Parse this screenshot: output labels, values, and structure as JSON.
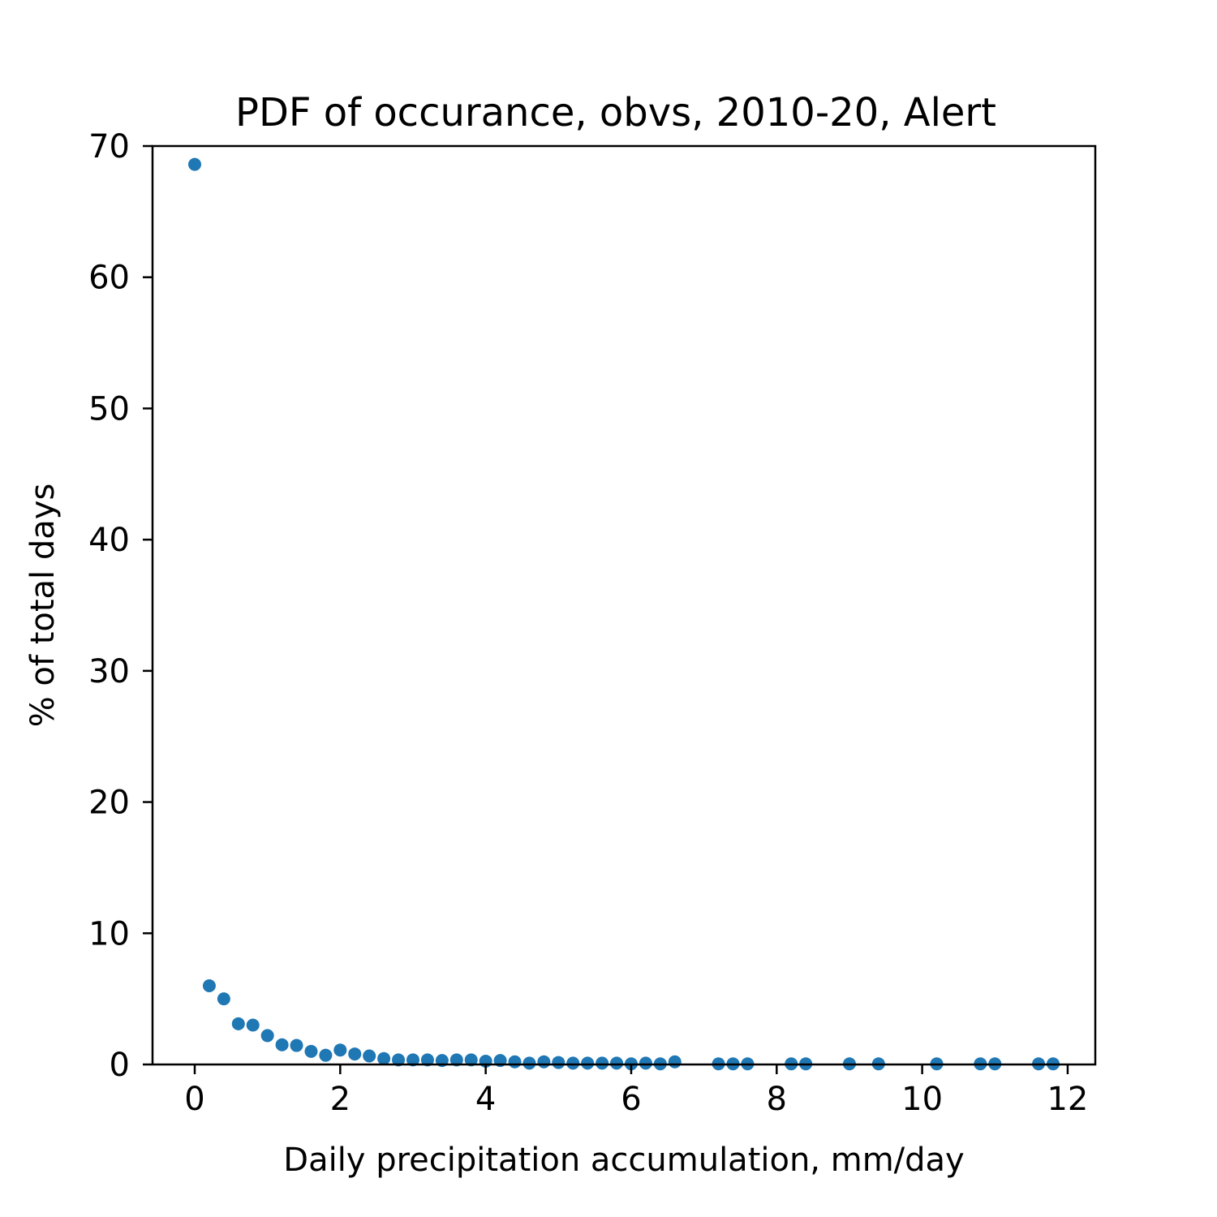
{
  "chart_data": {
    "type": "scatter",
    "title": "PDF of occurance, obvs, 2010-20, Alert",
    "xlabel": "Daily precipitation accumulation, mm/day",
    "ylabel": "% of total days",
    "xlim": [
      -0.58,
      12.38
    ],
    "ylim": [
      0,
      70
    ],
    "xticks": [
      0,
      2,
      4,
      6,
      8,
      10,
      12
    ],
    "yticks": [
      0,
      10,
      20,
      30,
      40,
      50,
      60,
      70
    ],
    "grid": false,
    "marker_color": "#1f77b4",
    "series": [
      {
        "points": [
          [
            0.0,
            68.6
          ],
          [
            0.2,
            6.0
          ],
          [
            0.4,
            5.0
          ],
          [
            0.6,
            3.1
          ],
          [
            0.8,
            3.0
          ],
          [
            1.0,
            2.2
          ],
          [
            1.2,
            1.5
          ],
          [
            1.4,
            1.45
          ],
          [
            1.6,
            1.0
          ],
          [
            1.8,
            0.7
          ],
          [
            2.0,
            1.1
          ],
          [
            2.2,
            0.8
          ],
          [
            2.4,
            0.65
          ],
          [
            2.6,
            0.45
          ],
          [
            2.8,
            0.35
          ],
          [
            3.0,
            0.35
          ],
          [
            3.2,
            0.35
          ],
          [
            3.4,
            0.3
          ],
          [
            3.6,
            0.35
          ],
          [
            3.8,
            0.35
          ],
          [
            4.0,
            0.25
          ],
          [
            4.2,
            0.3
          ],
          [
            4.4,
            0.2
          ],
          [
            4.6,
            0.1
          ],
          [
            4.8,
            0.2
          ],
          [
            5.0,
            0.15
          ],
          [
            5.2,
            0.1
          ],
          [
            5.4,
            0.1
          ],
          [
            5.6,
            0.1
          ],
          [
            5.8,
            0.1
          ],
          [
            6.0,
            0.05
          ],
          [
            6.2,
            0.1
          ],
          [
            6.4,
            0.05
          ],
          [
            6.6,
            0.2
          ],
          [
            7.2,
            0.05
          ],
          [
            7.4,
            0.05
          ],
          [
            7.6,
            0.05
          ],
          [
            8.2,
            0.05
          ],
          [
            8.4,
            0.05
          ],
          [
            9.0,
            0.05
          ],
          [
            9.4,
            0.05
          ],
          [
            10.2,
            0.05
          ],
          [
            10.8,
            0.05
          ],
          [
            11.0,
            0.05
          ],
          [
            11.6,
            0.05
          ],
          [
            11.8,
            0.05
          ]
        ]
      }
    ]
  }
}
